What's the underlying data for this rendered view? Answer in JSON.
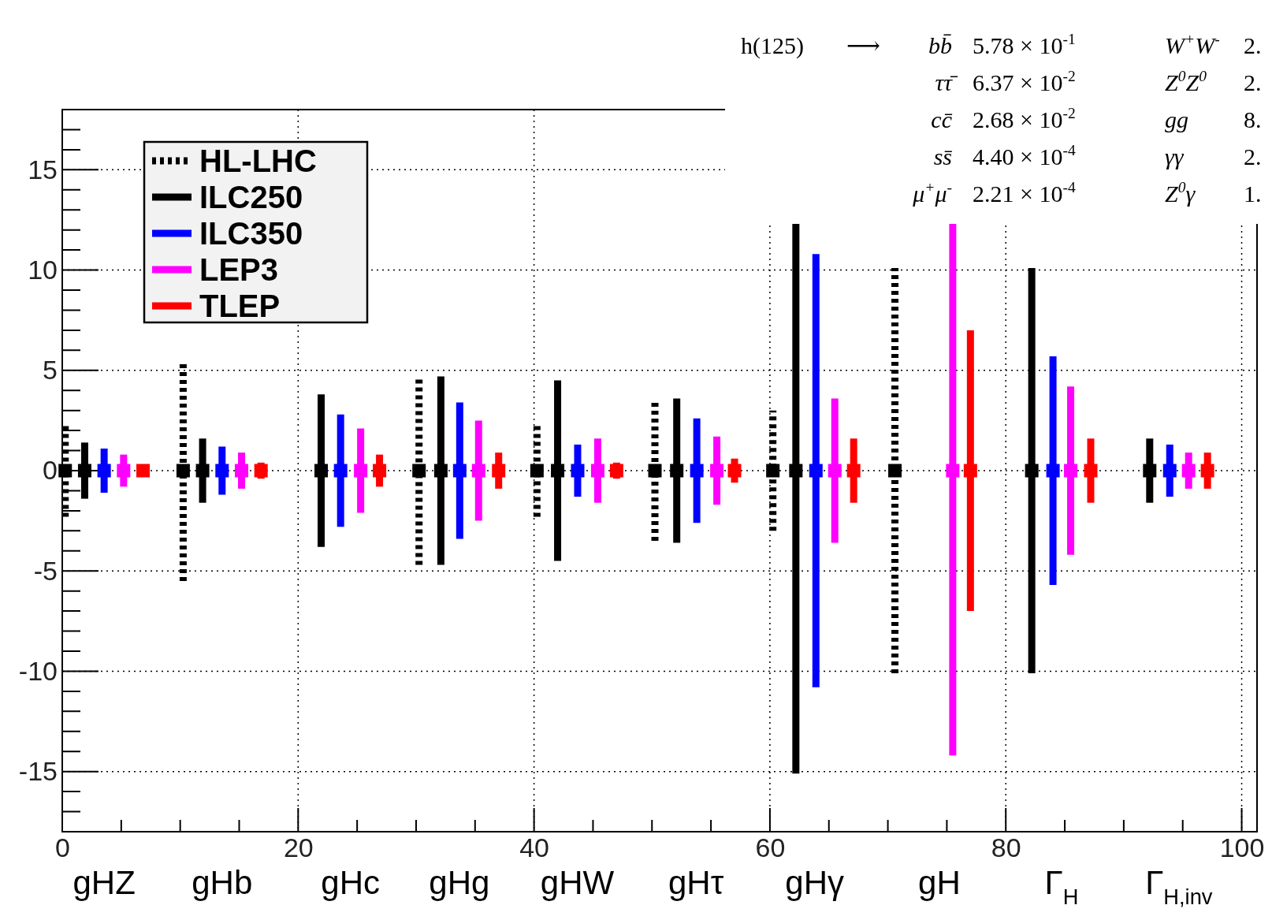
{
  "chart_data": {
    "type": "scatter",
    "xlim": [
      0,
      101.3
    ],
    "ylim": [
      -18,
      18
    ],
    "xticks": [
      0,
      20,
      40,
      60,
      80,
      100
    ],
    "yticks": [
      -15,
      -10,
      -5,
      0,
      5,
      10,
      15
    ],
    "grid": true,
    "legend": "top left",
    "marker": "square",
    "series": [
      {
        "name": "HL-LHC",
        "color": "#000000",
        "line_style": "dotted",
        "x": [
          0.25,
          10.25,
          null,
          30.25,
          40.25,
          50.25,
          60.25,
          70.6,
          null,
          null
        ],
        "values": [
          0,
          0,
          null,
          0,
          0,
          0,
          0,
          0,
          null,
          null
        ],
        "errors": [
          2.3,
          5.5,
          null,
          4.7,
          2.3,
          3.5,
          3.0,
          10.1,
          null,
          null
        ]
      },
      {
        "name": "ILC250",
        "color": "#000000",
        "x": [
          1.9,
          11.9,
          21.95,
          32.1,
          42.0,
          52.1,
          62.2,
          null,
          82.2,
          92.2
        ],
        "values": [
          0,
          0,
          0,
          0,
          0,
          0,
          0,
          null,
          0,
          0
        ],
        "errors": [
          1.4,
          1.6,
          3.8,
          4.7,
          4.5,
          3.6,
          15.1,
          null,
          10.1,
          1.6
        ]
      },
      {
        "name": "ILC350",
        "color": "#0000ff",
        "x": [
          3.55,
          13.55,
          23.6,
          33.7,
          43.7,
          53.8,
          63.9,
          null,
          84.0,
          93.9
        ],
        "values": [
          0,
          0,
          0,
          0,
          0,
          0,
          0,
          null,
          0,
          0
        ],
        "errors": [
          1.1,
          1.2,
          2.8,
          3.4,
          1.3,
          2.6,
          10.8,
          null,
          5.7,
          1.3
        ]
      },
      {
        "name": "LEP3",
        "color": "#ff00ff",
        "x": [
          5.2,
          15.2,
          25.3,
          35.3,
          45.4,
          55.5,
          65.5,
          75.5,
          85.5,
          95.5
        ],
        "values": [
          0,
          0,
          0,
          0,
          0,
          0,
          0,
          0,
          0,
          0
        ],
        "errors": [
          0.8,
          0.9,
          2.1,
          2.5,
          1.6,
          1.7,
          3.6,
          14.2,
          4.2,
          0.9
        ]
      },
      {
        "name": "TLEP",
        "color": "#ff0000",
        "x": [
          6.85,
          16.85,
          26.9,
          37.0,
          47.0,
          57.0,
          67.1,
          77.0,
          87.2,
          97.1
        ],
        "values": [
          0,
          0,
          0,
          0,
          0,
          0,
          0,
          0,
          0,
          0
        ],
        "errors": [
          0.3,
          0.4,
          0.8,
          0.9,
          0.4,
          0.6,
          1.6,
          7.0,
          1.6,
          0.9
        ]
      }
    ],
    "annotations": [
      "h(125)",
      "⟶",
      "bb̄ 5.78 × 10$^{-1}$",
      "ττ̄ 6.37 × 10$^{-2}$",
      "cc̄ 2.68 × 10$^{-2}$",
      "ss̄ 4.40 × 10$^{-4}$",
      "μ$^{+}$μ$^{-}$ 2.21 × 10$^{-4}$",
      "W$^{+}$W$^{-}$ 2.",
      "Z$^{0}$Z$^{0}$ 2.",
      "gg 8.",
      "γγ 2.",
      "Z$^{0}$γ 1.",
      "gHZ",
      "gHb",
      "gHc",
      "gHg",
      "gHW",
      "gHτ",
      "gHγ",
      "gH",
      "Γ$_{H}$",
      "Γ$_{H,inv}$"
    ]
  }
}
